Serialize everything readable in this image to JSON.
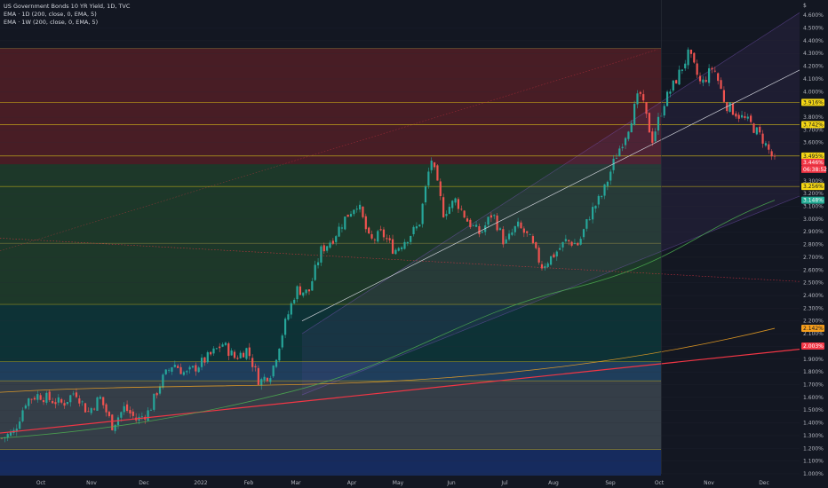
{
  "legend": {
    "title": "US Government Bonds 10 YR Yield, 1D, TVC",
    "ema1": "EMA · 1D (200, close, 0, EMA, 5)",
    "ema2": "EMA · 1W (200, close, 0, EMA, 5)"
  },
  "price_scale": {
    "top_label": "$",
    "ticks": [
      "4.600%",
      "4.500%",
      "4.400%",
      "4.300%",
      "4.200%",
      "4.100%",
      "4.000%",
      "3.800%",
      "3.700%",
      "3.600%",
      "3.400%",
      "3.300%",
      "3.200%",
      "3.100%",
      "3.000%",
      "2.900%",
      "2.800%",
      "2.700%",
      "2.600%",
      "2.500%",
      "2.400%",
      "2.300%",
      "2.200%",
      "2.100%",
      "1.900%",
      "1.800%",
      "1.700%",
      "1.600%",
      "1.500%",
      "1.400%",
      "1.300%",
      "1.200%",
      "1.100%",
      "1.000%"
    ],
    "badges": [
      {
        "value": 3.916,
        "label": "3.916%",
        "bg": "#f5d714",
        "fg": "#131722"
      },
      {
        "value": 3.742,
        "label": "3.742%",
        "bg": "#f5d714",
        "fg": "#131722"
      },
      {
        "value": 3.495,
        "label": "3.495%",
        "bg": "#f5d714",
        "fg": "#131722"
      },
      {
        "value": 3.446,
        "label": "3.446%",
        "bg": "#f23645",
        "fg": "#ffffff"
      },
      {
        "value": 3.256,
        "label": "3.256%",
        "bg": "#f5d714",
        "fg": "#131722"
      },
      {
        "value": 3.148,
        "label": "3.148%",
        "bg": "#22ab94",
        "fg": "#ffffff"
      },
      {
        "value": 2.142,
        "label": "2.142%",
        "bg": "#f59e1c",
        "fg": "#131722"
      },
      {
        "value": 2.003,
        "label": "2.003%",
        "bg": "#f23645",
        "fg": "#ffffff"
      }
    ],
    "countdown": "06:38:52"
  },
  "time_axis": {
    "labels": [
      "Oct",
      "Nov",
      "Dec",
      "2022",
      "Feb",
      "Mar",
      "Apr",
      "May",
      "Jun",
      "Jul",
      "Aug",
      "Sep",
      "Oct",
      "Nov",
      "Dec"
    ]
  },
  "colors": {
    "up": "#26a69a",
    "down": "#ef5350",
    "ema_1d": "#4caf50",
    "ema_1w": "#f5a623",
    "trendline": "#f23645",
    "level_line": "#f5d714",
    "channel": "#7e57c2"
  },
  "chart_data": {
    "type": "candlestick",
    "symbol": "US Government Bonds 10 YR Yield",
    "interval": "1D",
    "ylim": [
      1.0,
      4.65
    ],
    "x_labels": [
      "Oct",
      "Nov",
      "Dec",
      "2022",
      "Feb",
      "Mar",
      "Apr",
      "May",
      "Jun",
      "Jul",
      "Aug",
      "Sep",
      "Oct",
      "Nov",
      "Dec"
    ],
    "horizontal_levels": [
      4.34,
      3.916,
      3.742,
      3.495,
      3.256,
      2.81,
      2.33,
      1.88,
      1.73,
      1.19
    ],
    "zones": [
      {
        "from": 3.43,
        "to": 4.34,
        "color": "#d32f2f"
      },
      {
        "from": 2.33,
        "to": 3.43,
        "color": "#388e3c"
      },
      {
        "from": 1.88,
        "to": 2.33,
        "color": "#00796b"
      },
      {
        "from": 1.73,
        "to": 1.88,
        "color": "#42a5f5"
      },
      {
        "from": 1.19,
        "to": 1.73,
        "color": "#90a4ae"
      },
      {
        "from": 0.97,
        "to": 1.19,
        "color": "#1a3d8f"
      }
    ],
    "price_path": [
      1.28,
      1.33,
      1.58,
      1.62,
      1.58,
      1.55,
      1.65,
      1.48,
      1.6,
      1.38,
      1.52,
      1.42,
      1.49,
      1.73,
      1.87,
      1.78,
      1.85,
      1.93,
      2.02,
      1.91,
      1.98,
      1.72,
      1.8,
      2.15,
      2.45,
      2.42,
      2.75,
      2.85,
      3.01,
      3.13,
      2.82,
      2.89,
      2.75,
      2.85,
      2.95,
      3.48,
      3.05,
      3.15,
      2.98,
      2.88,
      3.05,
      2.8,
      2.95,
      2.85,
      2.63,
      2.72,
      2.83,
      2.8,
      3.05,
      3.2,
      3.48,
      3.7,
      4.0,
      3.62,
      3.92,
      4.1,
      4.3,
      4.05,
      4.2,
      3.9,
      3.82,
      3.75,
      3.63,
      3.45
    ],
    "last_price": 3.446
  }
}
